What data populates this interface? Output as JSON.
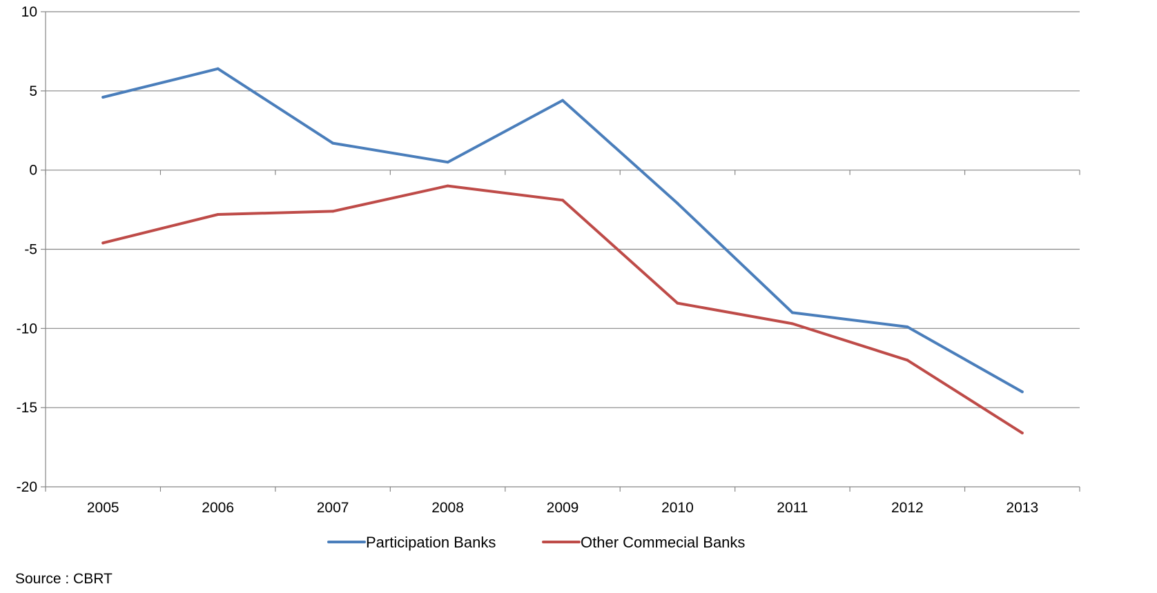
{
  "chart_data": {
    "type": "line",
    "title": "",
    "xlabel": "",
    "ylabel": "",
    "x": [
      "2005",
      "2006",
      "2007",
      "2008",
      "2009",
      "2010",
      "2011",
      "2012",
      "2013"
    ],
    "ylim": [
      -20,
      10
    ],
    "yticks": [
      10,
      5,
      0,
      -5,
      -10,
      -15,
      -20
    ],
    "ytick_labels": [
      "10",
      "5",
      "0",
      "-5",
      "-10",
      "-15",
      "-20"
    ],
    "grid": true,
    "legend_position": "bottom",
    "series": [
      {
        "name": "Participation Banks",
        "color": "#4a7ebb",
        "values": [
          4.6,
          6.4,
          1.7,
          0.5,
          4.4,
          -2.1,
          -9.0,
          -9.9,
          -14.0
        ]
      },
      {
        "name": "Other Commecial Banks",
        "color": "#be4b48",
        "values": [
          -4.6,
          -2.8,
          -2.6,
          -1.0,
          -1.9,
          -8.4,
          -9.7,
          -12.0,
          -16.6
        ]
      }
    ]
  },
  "footer": {
    "source": "Source : CBRT"
  }
}
